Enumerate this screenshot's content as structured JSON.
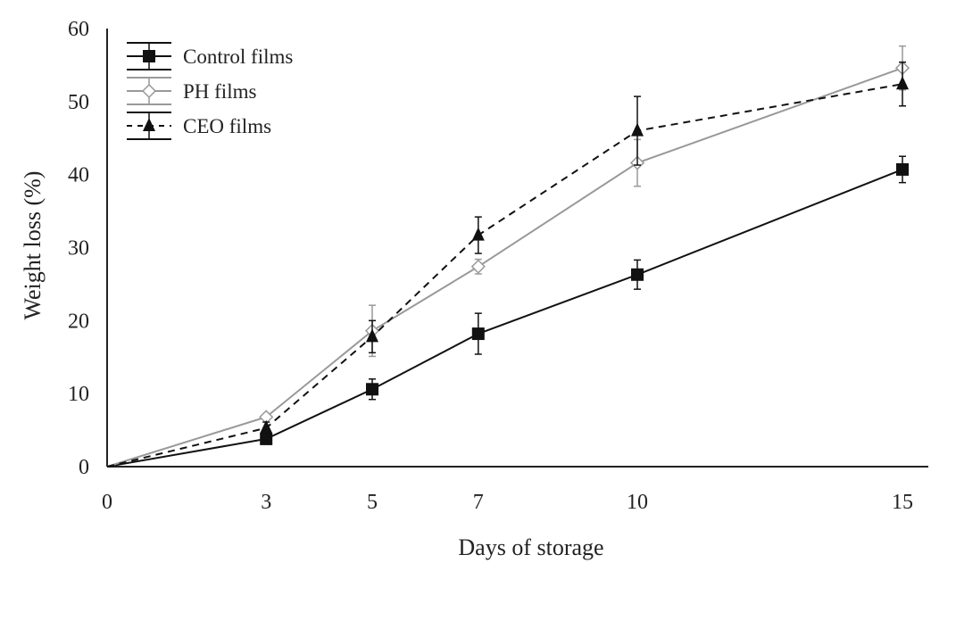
{
  "chart_data": {
    "type": "line",
    "title": "",
    "xlabel": "Days of storage",
    "ylabel": "Weight loss (%)",
    "x": [
      0,
      3,
      5,
      7,
      10,
      15
    ],
    "x_ticks": [
      "0",
      "3",
      "5",
      "7",
      "10",
      "15"
    ],
    "y_ticks": [
      "0",
      "10",
      "20",
      "30",
      "40",
      "50",
      "60"
    ],
    "xlim": [
      0,
      15.5
    ],
    "ylim": [
      0,
      60
    ],
    "grid": false,
    "legend_position": "top-left",
    "series": [
      {
        "name": "Control films",
        "marker": "filled-square",
        "line": "solid",
        "color": "#111111",
        "values": [
          0,
          3.8,
          10.6,
          18.2,
          26.3,
          40.7
        ],
        "errors": [
          0,
          0.6,
          1.4,
          2.8,
          2.0,
          1.8
        ]
      },
      {
        "name": "PH films",
        "marker": "open-diamond",
        "line": "solid",
        "color": "#999999",
        "values": [
          0,
          6.8,
          18.6,
          27.4,
          41.6,
          54.6
        ],
        "errors": [
          0,
          0.4,
          3.5,
          1.0,
          3.2,
          3.0
        ]
      },
      {
        "name": "CEO films",
        "marker": "filled-triangle",
        "line": "dashed",
        "color": "#111111",
        "values": [
          0,
          5.3,
          17.8,
          31.7,
          46.0,
          52.4
        ],
        "errors": [
          0,
          0.8,
          2.2,
          2.5,
          4.7,
          3.0
        ]
      }
    ]
  }
}
